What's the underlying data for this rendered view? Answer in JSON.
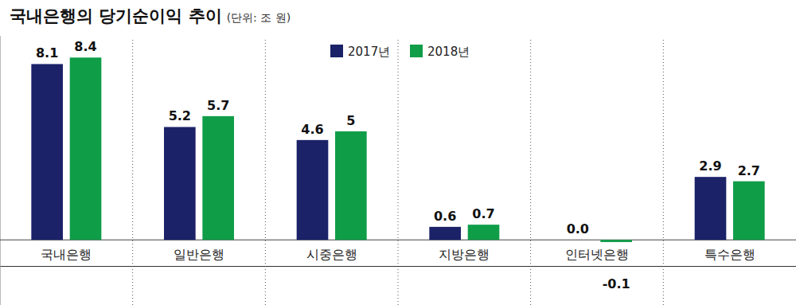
{
  "chart_data": {
    "type": "bar",
    "title": "국내은행의 당기순이익 추이",
    "subtitle": "(단위: 조 원)",
    "categories": [
      "국내은행",
      "일반은행",
      "시중은행",
      "지방은행",
      "인터넷은행",
      "특수은행"
    ],
    "series": [
      {
        "name": "2017년",
        "color": "#1b2268",
        "values": [
          8.1,
          5.2,
          4.6,
          0.6,
          0.0,
          2.9
        ],
        "value_labels": [
          "8.1",
          "5.2",
          "4.6",
          "0.6",
          "0.0",
          "2.9"
        ]
      },
      {
        "name": "2018년",
        "color": "#0f9d48",
        "values": [
          8.4,
          5.7,
          5,
          0.7,
          -0.1,
          2.7
        ]
      }
    ],
    "ylim": [
      -3,
      9.4
    ],
    "yticks": [
      0
    ],
    "grid": false,
    "legend": "top",
    "data_labels": true,
    "tick_labels": "x"
  }
}
